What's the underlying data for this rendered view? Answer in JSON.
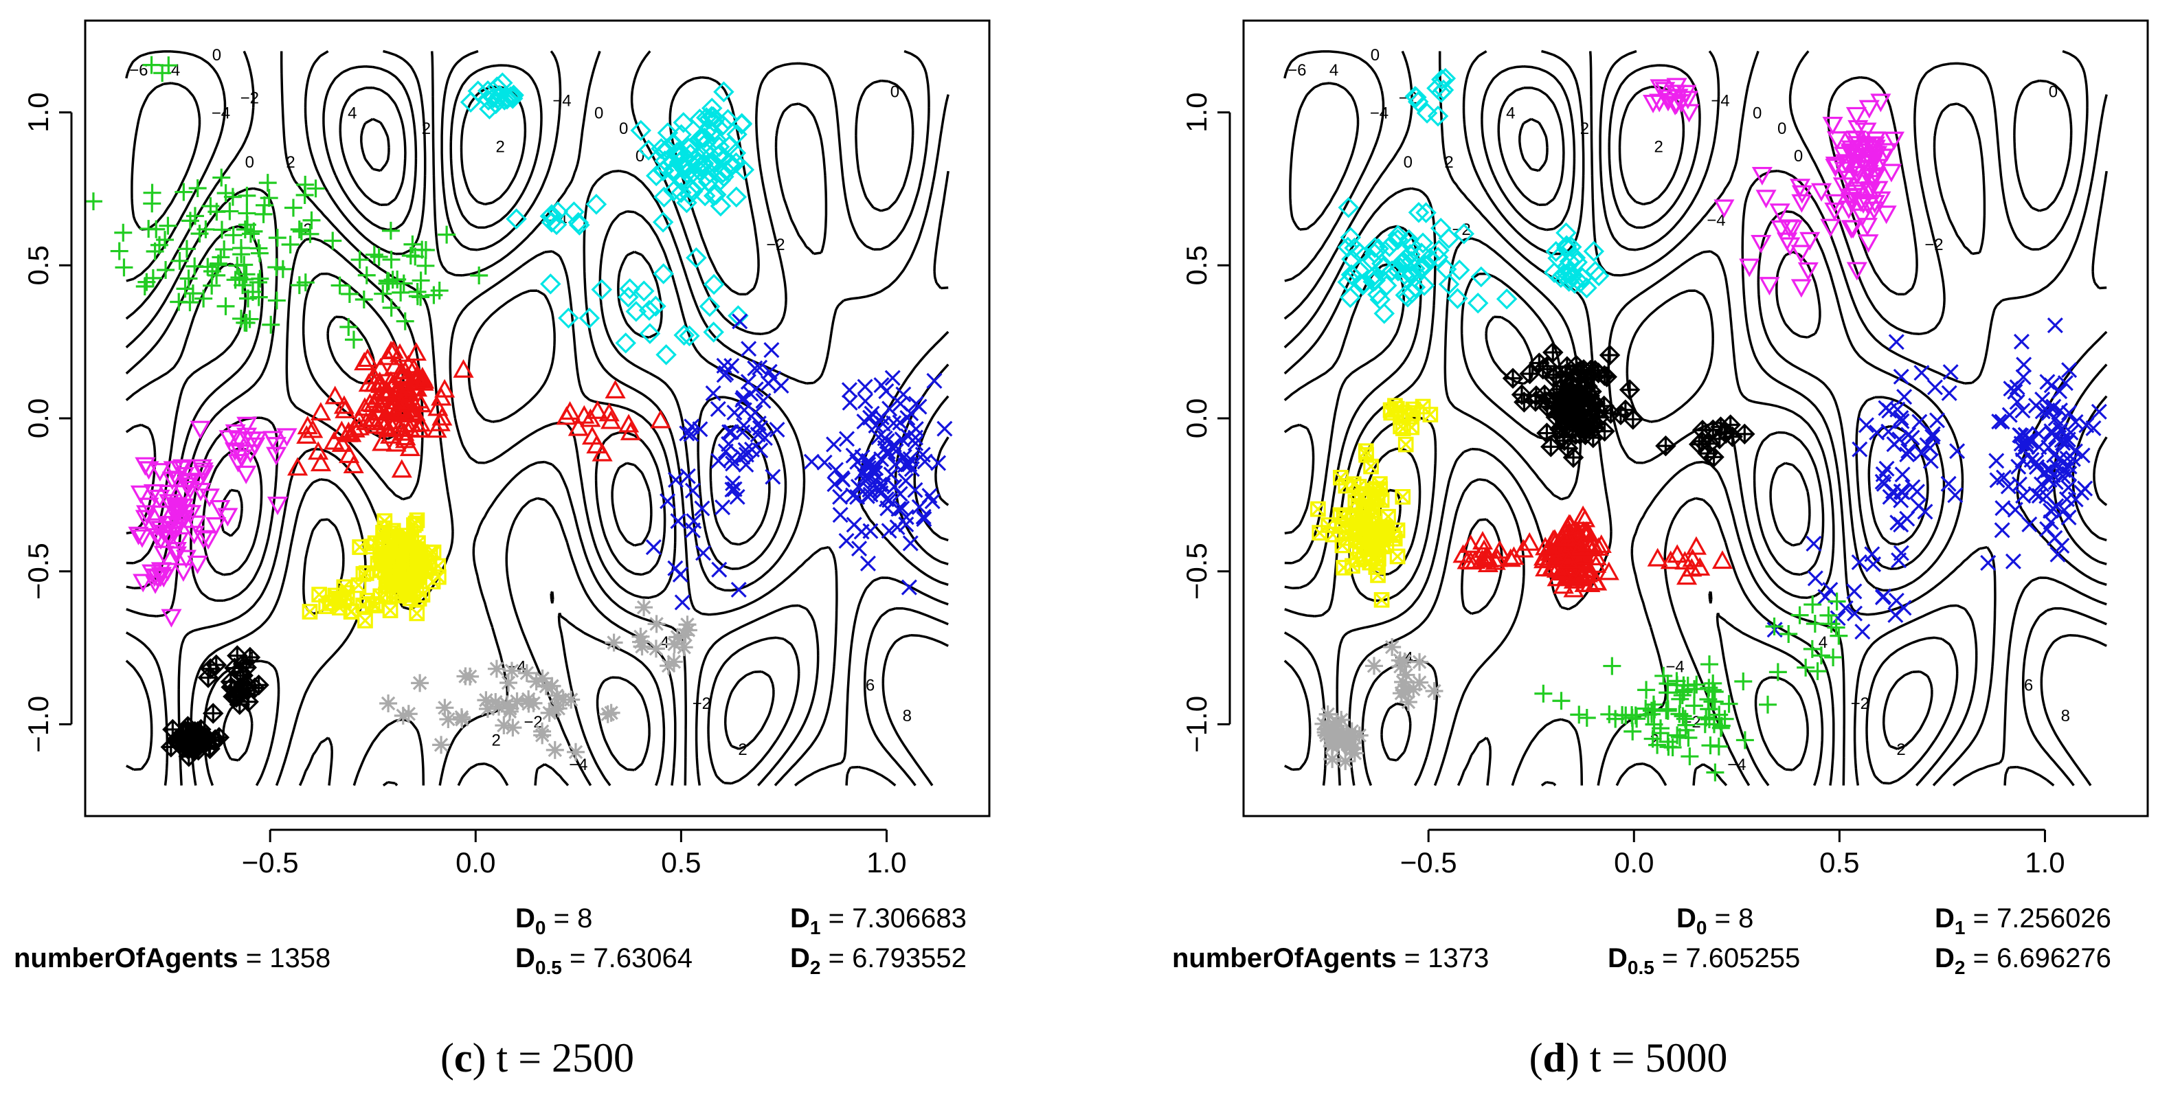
{
  "chart_data": [
    {
      "type": "scatter",
      "panel_label": "(c)",
      "panel_time": "t = 2500",
      "caption_letter": "c",
      "caption_rest": " t = 2500",
      "xlim": [
        -0.95,
        1.25
      ],
      "ylim": [
        -1.3,
        1.3
      ],
      "x_ticks": [
        -0.5,
        0.0,
        0.5,
        1.0
      ],
      "x_tick_labels": [
        "−0.5",
        "0.0",
        "0.5",
        "1.0"
      ],
      "y_ticks": [
        -1.0,
        -0.5,
        0.0,
        0.5,
        1.0
      ],
      "y_tick_labels": [
        "−1.0",
        "−0.5",
        "0.0",
        "0.5",
        "1.0"
      ],
      "stats": {
        "numberOfAgents_label": "numberOfAgents",
        "numberOfAgents": "1358",
        "D0_label": "D",
        "D0_sub": "0",
        "D0": "8",
        "D05_label": "D",
        "D05_sub": "0.5",
        "D05": "7.63064",
        "D1_label": "D",
        "D1_sub": "1",
        "D1": "7.306683",
        "D2_label": "D",
        "D2_sub": "2",
        "D2": "6.793552"
      },
      "contour_labels": [
        "−6",
        "4",
        "0",
        "−2",
        "−4",
        "4",
        "2",
        "2",
        "−2",
        "0",
        "−4",
        "0",
        "2",
        "−4",
        "0",
        "−2",
        "−4",
        "4",
        "−2",
        "2",
        "6",
        "8",
        "2",
        "−4",
        "0",
        "−4",
        "−2",
        "0"
      ],
      "series": [
        {
          "name": "green",
          "marker": "plus",
          "color": "#22cc22",
          "clusters": [
            [
              -0.6,
              0.55,
              0.28,
              0.28,
              95
            ],
            [
              -0.2,
              0.45,
              0.18,
              0.22,
              35
            ],
            [
              -0.75,
              1.15,
              0.05,
              0.05,
              3
            ]
          ]
        },
        {
          "name": "cyan",
          "marker": "diamond",
          "color": "#00e5e5",
          "clusters": [
            [
              0.55,
              0.85,
              0.12,
              0.18,
              95
            ],
            [
              0.05,
              1.05,
              0.05,
              0.04,
              18
            ],
            [
              0.4,
              0.35,
              0.2,
              0.15,
              20
            ],
            [
              0.2,
              0.65,
              0.12,
              0.1,
              10
            ]
          ]
        },
        {
          "name": "blue",
          "marker": "x",
          "color": "#1515dd",
          "clusters": [
            [
              1.0,
              -0.15,
              0.12,
              0.28,
              110
            ],
            [
              0.65,
              0.0,
              0.12,
              0.25,
              50
            ],
            [
              0.55,
              -0.35,
              0.1,
              0.2,
              20
            ]
          ]
        },
        {
          "name": "red",
          "marker": "triangle",
          "color": "#ee1111",
          "clusters": [
            [
              -0.18,
              0.05,
              0.1,
              0.16,
              110
            ],
            [
              -0.35,
              -0.05,
              0.08,
              0.12,
              20
            ],
            [
              0.3,
              0.0,
              0.1,
              0.12,
              15
            ]
          ]
        },
        {
          "name": "magenta",
          "marker": "triangle-down",
          "color": "#ee22ee",
          "clusters": [
            [
              -0.72,
              -0.3,
              0.08,
              0.18,
              70
            ],
            [
              -0.78,
              -0.52,
              0.03,
              0.03,
              10
            ],
            [
              -0.55,
              -0.1,
              0.1,
              0.12,
              20
            ]
          ]
        },
        {
          "name": "yellow",
          "marker": "square-x",
          "color": "#f5f500",
          "clusters": [
            [
              -0.18,
              -0.48,
              0.08,
              0.12,
              160
            ],
            [
              -0.32,
              -0.6,
              0.08,
              0.06,
              20
            ]
          ]
        },
        {
          "name": "black",
          "marker": "diamond-plus",
          "color": "#000000",
          "clusters": [
            [
              -0.68,
              -1.05,
              0.05,
              0.05,
              45
            ],
            [
              -0.58,
              -0.85,
              0.08,
              0.1,
              25
            ]
          ]
        },
        {
          "name": "gray",
          "marker": "star",
          "color": "#aaaaaa",
          "clusters": [
            [
              0.1,
              -0.95,
              0.2,
              0.15,
              45
            ],
            [
              0.45,
              -0.7,
              0.1,
              0.12,
              15
            ]
          ]
        }
      ]
    },
    {
      "type": "scatter",
      "panel_label": "(d)",
      "panel_time": "t = 5000",
      "caption_letter": "d",
      "caption_rest": " t = 5000",
      "xlim": [
        -0.95,
        1.25
      ],
      "ylim": [
        -1.3,
        1.3
      ],
      "x_ticks": [
        -0.5,
        0.0,
        0.5,
        1.0
      ],
      "x_tick_labels": [
        "−0.5",
        "0.0",
        "0.5",
        "1.0"
      ],
      "y_ticks": [
        -1.0,
        -0.5,
        0.0,
        0.5,
        1.0
      ],
      "y_tick_labels": [
        "−1.0",
        "−0.5",
        "0.0",
        "0.5",
        "1.0"
      ],
      "stats": {
        "numberOfAgents_label": "numberOfAgents",
        "numberOfAgents": "1373",
        "D0_label": "D",
        "D0_sub": "0",
        "D0": "8",
        "D05_label": "D",
        "D05_sub": "0.5",
        "D05": "7.605255",
        "D1_label": "D",
        "D1_sub": "1",
        "D1": "7.256026",
        "D2_label": "D",
        "D2_sub": "2",
        "D2": "6.696276"
      },
      "contour_labels": [
        "−6",
        "4",
        "0",
        "−2",
        "−4",
        "4",
        "2",
        "2",
        "−2",
        "0",
        "−4",
        "0",
        "2",
        "−4",
        "0",
        "−2",
        "−4",
        "4",
        "−2",
        "2",
        "6",
        "8",
        "2",
        "−4",
        "0",
        "−4",
        "−2",
        "0"
      ],
      "series": [
        {
          "name": "magenta",
          "marker": "triangle-down",
          "color": "#ee22ee",
          "clusters": [
            [
              0.55,
              0.8,
              0.07,
              0.2,
              80
            ],
            [
              0.1,
              1.05,
              0.05,
              0.05,
              15
            ],
            [
              0.35,
              0.6,
              0.15,
              0.3,
              20
            ]
          ]
        },
        {
          "name": "cyan",
          "marker": "diamond",
          "color": "#00e5e5",
          "clusters": [
            [
              -0.55,
              0.5,
              0.18,
              0.14,
              70
            ],
            [
              -0.15,
              0.5,
              0.05,
              0.08,
              25
            ],
            [
              -0.5,
              1.05,
              0.1,
              0.1,
              10
            ]
          ]
        },
        {
          "name": "blue",
          "marker": "x",
          "color": "#1515dd",
          "clusters": [
            [
              1.0,
              -0.1,
              0.12,
              0.28,
              110
            ],
            [
              0.65,
              -0.1,
              0.12,
              0.25,
              50
            ],
            [
              0.55,
              -0.55,
              0.15,
              0.15,
              20
            ]
          ]
        },
        {
          "name": "black",
          "marker": "diamond-plus",
          "color": "#000000",
          "clusters": [
            [
              -0.15,
              0.05,
              0.1,
              0.14,
              110
            ],
            [
              0.2,
              -0.05,
              0.08,
              0.1,
              15
            ]
          ]
        },
        {
          "name": "red",
          "marker": "triangle",
          "color": "#ee1111",
          "clusters": [
            [
              -0.15,
              -0.45,
              0.06,
              0.1,
              140
            ],
            [
              -0.35,
              -0.45,
              0.08,
              0.05,
              20
            ],
            [
              0.1,
              -0.45,
              0.1,
              0.06,
              10
            ]
          ]
        },
        {
          "name": "yellow",
          "marker": "square-x",
          "color": "#f5f500",
          "clusters": [
            [
              -0.65,
              -0.35,
              0.08,
              0.16,
              90
            ],
            [
              -0.55,
              0.0,
              0.06,
              0.06,
              15
            ]
          ]
        },
        {
          "name": "green",
          "marker": "plus",
          "color": "#22cc22",
          "clusters": [
            [
              0.1,
              -0.95,
              0.22,
              0.15,
              80
            ],
            [
              0.45,
              -0.7,
              0.08,
              0.15,
              15
            ]
          ]
        },
        {
          "name": "gray",
          "marker": "star",
          "color": "#aaaaaa",
          "clusters": [
            [
              -0.72,
              -1.05,
              0.05,
              0.06,
              40
            ],
            [
              -0.55,
              -0.85,
              0.08,
              0.08,
              15
            ]
          ]
        }
      ]
    }
  ]
}
